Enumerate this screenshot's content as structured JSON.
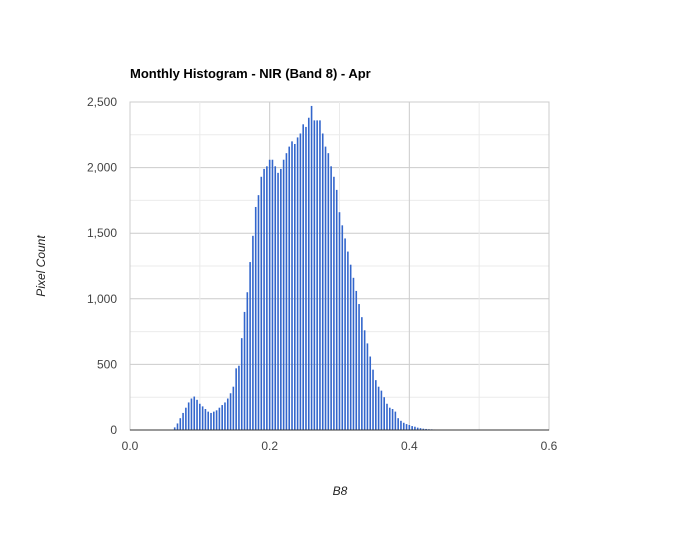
{
  "chart_data": {
    "type": "bar",
    "title": "Monthly Histogram - NIR (Band 8) - Apr",
    "xlabel": "B8",
    "ylabel": "Pixel Count",
    "xlim": [
      0.0,
      0.6
    ],
    "ylim": [
      0,
      2500
    ],
    "x_ticks": [
      "0.0",
      "0.2",
      "0.4",
      "0.6"
    ],
    "y_ticks": [
      "0",
      "500",
      "1,000",
      "1,500",
      "2,000",
      "2,500"
    ],
    "grid": true,
    "legend": "none",
    "bar_color": "#3366cc",
    "x": [
      0.064,
      0.068,
      0.072,
      0.076,
      0.08,
      0.084,
      0.088,
      0.092,
      0.096,
      0.1,
      0.104,
      0.108,
      0.112,
      0.116,
      0.12,
      0.124,
      0.128,
      0.132,
      0.136,
      0.14,
      0.144,
      0.148,
      0.152,
      0.156,
      0.16,
      0.164,
      0.168,
      0.172,
      0.176,
      0.18,
      0.184,
      0.188,
      0.192,
      0.196,
      0.2,
      0.204,
      0.208,
      0.212,
      0.216,
      0.22,
      0.224,
      0.228,
      0.232,
      0.236,
      0.24,
      0.244,
      0.248,
      0.252,
      0.256,
      0.26,
      0.264,
      0.268,
      0.272,
      0.276,
      0.28,
      0.284,
      0.288,
      0.292,
      0.296,
      0.3,
      0.304,
      0.308,
      0.312,
      0.316,
      0.32,
      0.324,
      0.328,
      0.332,
      0.336,
      0.34,
      0.344,
      0.348,
      0.352,
      0.356,
      0.36,
      0.364,
      0.368,
      0.372,
      0.376,
      0.38,
      0.384,
      0.388,
      0.392,
      0.396,
      0.4,
      0.404,
      0.408,
      0.412,
      0.416,
      0.42,
      0.424,
      0.428,
      0.432,
      0.436,
      0.44,
      0.444,
      0.448,
      0.452,
      0.456,
      0.46,
      0.464,
      0.468,
      0.472,
      0.476,
      0.48
    ],
    "values": [
      20,
      50,
      90,
      130,
      170,
      210,
      240,
      255,
      230,
      200,
      180,
      160,
      140,
      130,
      140,
      150,
      170,
      190,
      210,
      240,
      280,
      330,
      470,
      490,
      700,
      900,
      1050,
      1280,
      1480,
      1700,
      1790,
      1930,
      1990,
      2010,
      2060,
      2060,
      2010,
      1960,
      1990,
      2060,
      2110,
      2160,
      2200,
      2180,
      2230,
      2260,
      2330,
      2310,
      2380,
      2470,
      2360,
      2360,
      2360,
      2260,
      2160,
      2110,
      2010,
      1930,
      1830,
      1660,
      1560,
      1460,
      1360,
      1260,
      1160,
      1060,
      960,
      860,
      760,
      660,
      560,
      460,
      380,
      330,
      300,
      250,
      200,
      170,
      160,
      140,
      90,
      70,
      55,
      45,
      38,
      30,
      25,
      18,
      14,
      10,
      8,
      6,
      5,
      4,
      3,
      2,
      2,
      1,
      1,
      1,
      1,
      1,
      0,
      0,
      0
    ]
  }
}
